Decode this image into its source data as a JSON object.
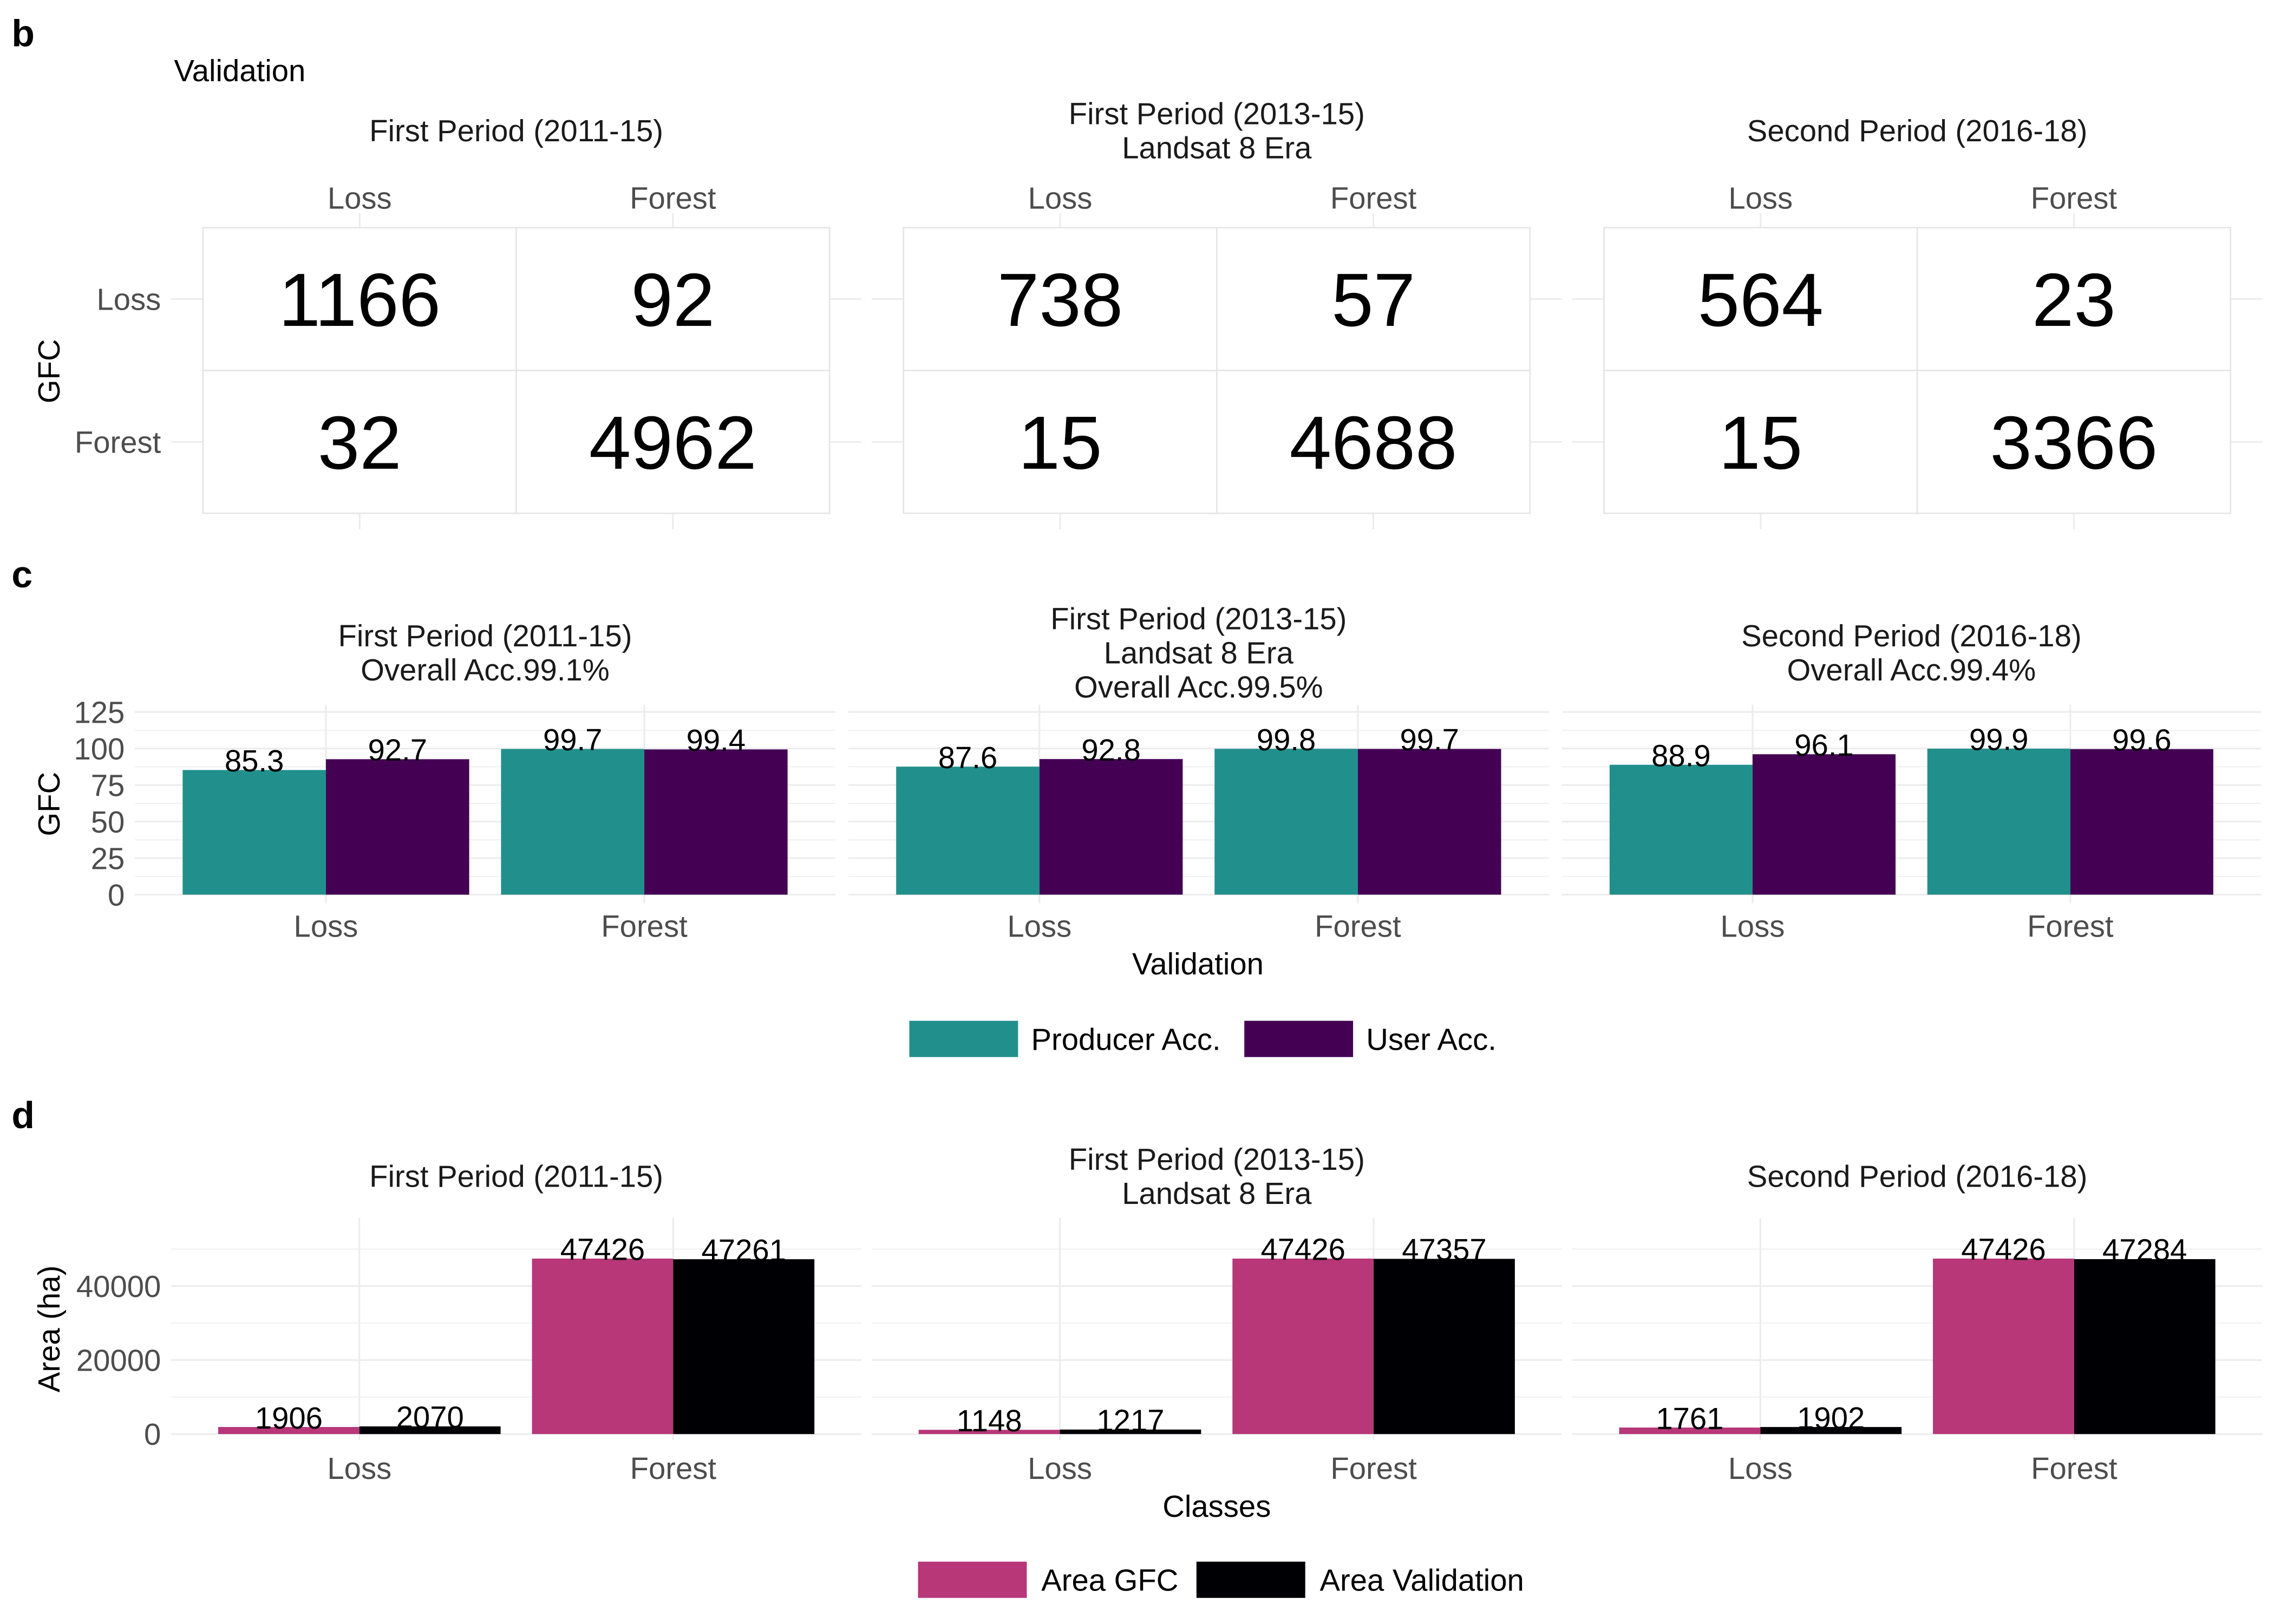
{
  "chart_data": [
    {
      "panel": "b",
      "type": "table",
      "xlabel": "Validation",
      "ylabel": "GFC",
      "columns": [
        "Loss",
        "Forest"
      ],
      "rows": [
        "Loss",
        "Forest"
      ],
      "grid": true,
      "colors": {
        "tile_fill": "#FFFFFF",
        "tile_border": "#E5E5E5",
        "cell_text": "#000000"
      },
      "facets": [
        {
          "title": [
            "First Period (2011-15)"
          ],
          "cells": [
            [
              1166,
              92
            ],
            [
              32,
              4962
            ]
          ]
        },
        {
          "title": [
            "First Period (2013-15)",
            "Landsat 8 Era"
          ],
          "cells": [
            [
              738,
              57
            ],
            [
              15,
              4688
            ]
          ]
        },
        {
          "title": [
            "Second Period (2016-18)"
          ],
          "cells": [
            [
              564,
              23
            ],
            [
              15,
              3366
            ]
          ]
        }
      ]
    },
    {
      "panel": "c",
      "type": "bar",
      "xlabel": "Validation",
      "ylabel": "GFC",
      "categories": [
        "Loss",
        "Forest"
      ],
      "yticks": [
        0,
        25,
        50,
        75,
        100,
        125
      ],
      "ylim": [
        0,
        130
      ],
      "grid": true,
      "legend": "bottom",
      "series": [
        {
          "name": "Producer Acc.",
          "color": "#21908C"
        },
        {
          "name": "User Acc.",
          "color": "#440154"
        }
      ],
      "facets": [
        {
          "title": [
            "First Period (2011-15)",
            "Overall Acc.99.1%"
          ],
          "values": [
            [
              85.3,
              99.7
            ],
            [
              92.7,
              99.4
            ]
          ]
        },
        {
          "title": [
            "First Period (2013-15)",
            "Landsat 8 Era",
            "Overall Acc.99.5%"
          ],
          "values": [
            [
              87.6,
              99.8
            ],
            [
              92.8,
              99.7
            ]
          ]
        },
        {
          "title": [
            "Second Period (2016-18)",
            "Overall Acc.99.4%"
          ],
          "values": [
            [
              88.9,
              99.9
            ],
            [
              96.1,
              99.6
            ]
          ]
        }
      ]
    },
    {
      "panel": "d",
      "type": "bar",
      "xlabel": "Classes",
      "ylabel": "Area (ha)",
      "categories": [
        "Loss",
        "Forest"
      ],
      "yticks": [
        0,
        20000,
        40000
      ],
      "ylim": [
        0,
        58400
      ],
      "grid": true,
      "legend": "bottom",
      "series": [
        {
          "name": "Area GFC",
          "color": "#B73779"
        },
        {
          "name": "Area Validation",
          "color": "#000004"
        }
      ],
      "facets": [
        {
          "title": [
            "First Period (2011-15)"
          ],
          "values": [
            [
              1906,
              47426
            ],
            [
              2070,
              47261
            ]
          ]
        },
        {
          "title": [
            "First Period (2013-15)",
            "Landsat 8 Era"
          ],
          "values": [
            [
              1148,
              47426
            ],
            [
              1217,
              47357
            ]
          ]
        },
        {
          "title": [
            "Second Period (2016-18)"
          ],
          "values": [
            [
              1761,
              47426
            ],
            [
              1902,
              47284
            ]
          ]
        }
      ]
    }
  ]
}
